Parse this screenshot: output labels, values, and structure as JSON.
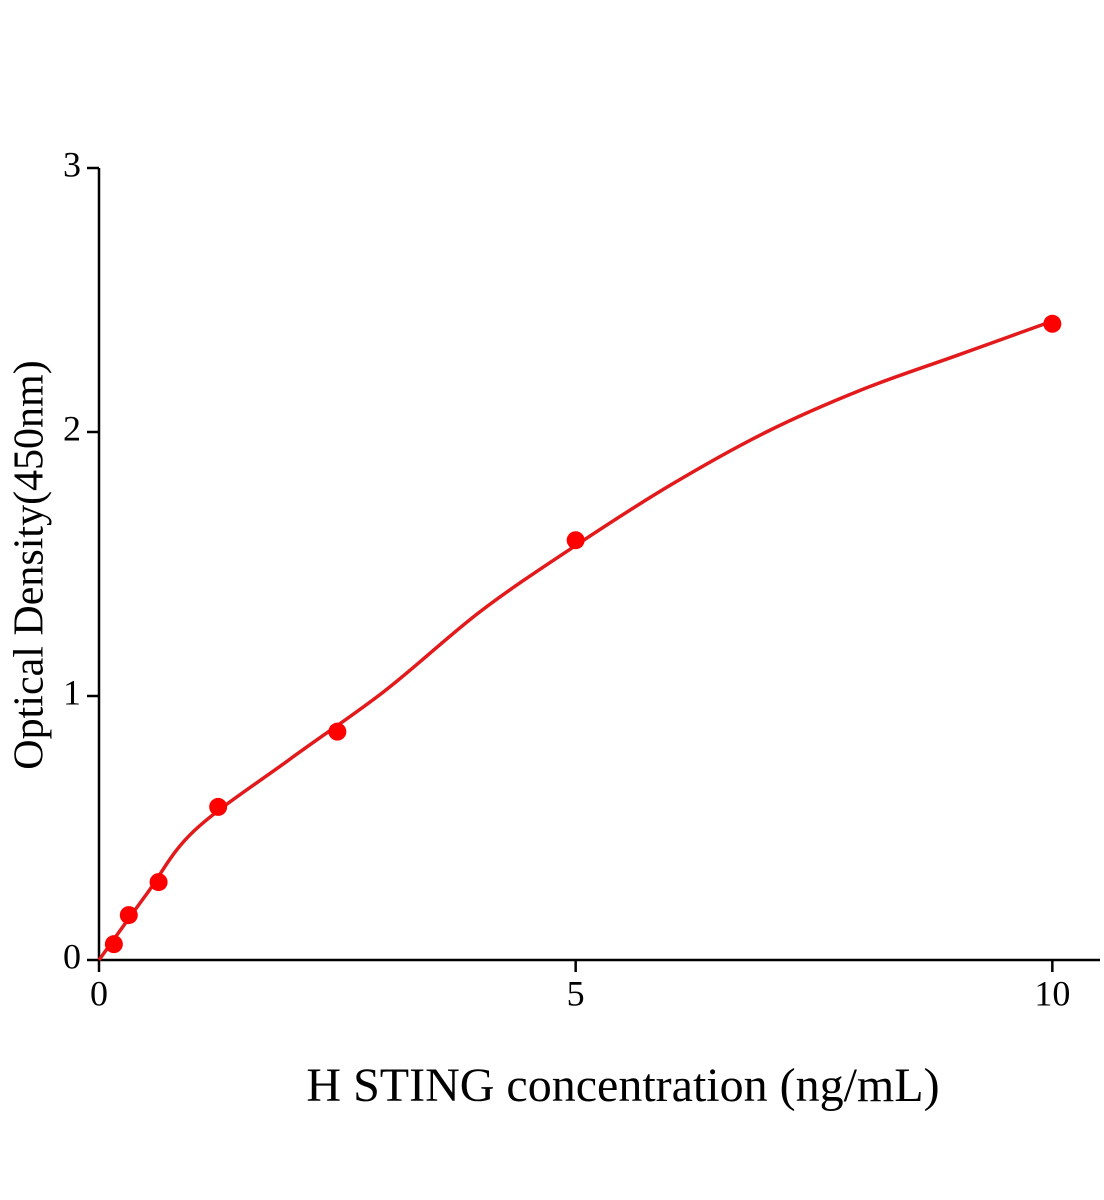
{
  "chart_data": {
    "type": "scatter",
    "x_label": "H STING concentration (ng/mL)",
    "y_label": "Optical Density(450nm)",
    "series": [
      {
        "color": "#ff0000",
        "x": [
          0.156,
          0.3125,
          0.625,
          1.25,
          2.5,
          5,
          10
        ],
        "values": [
          0.06,
          0.17,
          0.295,
          0.58,
          0.865,
          1.59,
          2.41
        ]
      }
    ],
    "fit": {
      "color": "#e31a1c",
      "x": [
        0,
        0.5,
        1,
        2,
        3,
        4,
        5,
        6,
        7,
        8,
        9,
        10
      ],
      "values": [
        0,
        0.25,
        0.49,
        0.76,
        1.02,
        1.32,
        1.57,
        1.8,
        2.0,
        2.16,
        2.29,
        2.42
      ]
    },
    "xlim": [
      0,
      10.5
    ],
    "xticks": [
      0,
      5,
      10
    ],
    "ylim": [
      0,
      3
    ],
    "yticks": [
      0,
      1,
      2,
      3
    ]
  }
}
